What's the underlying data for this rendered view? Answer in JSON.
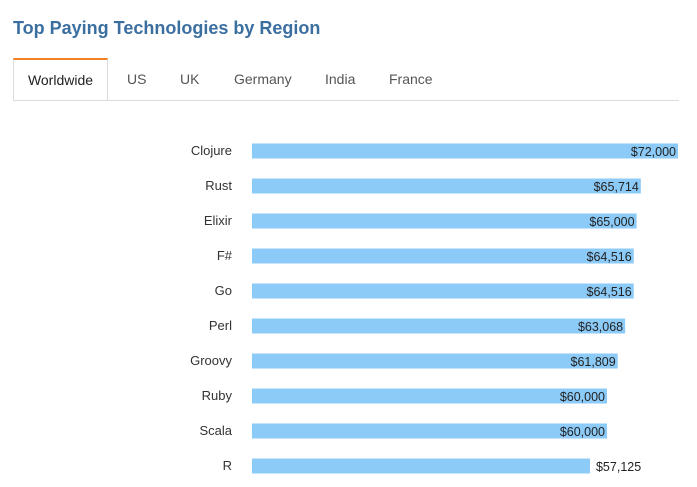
{
  "header": {
    "title": "Top Paying Technologies by Region"
  },
  "tabs": [
    {
      "label": "Worldwide",
      "active": true
    },
    {
      "label": "US",
      "active": false
    },
    {
      "label": "UK",
      "active": false
    },
    {
      "label": "Germany",
      "active": false
    },
    {
      "label": "India",
      "active": false
    },
    {
      "label": "France",
      "active": false
    }
  ],
  "colors": {
    "title": "#3b6fa0",
    "bar": "#8ccaf7",
    "active_tab_accent": "#f48024"
  },
  "chart_data": {
    "type": "bar",
    "orientation": "horizontal",
    "title": "",
    "region": "Worldwide",
    "categories": [
      "Clojure",
      "Rust",
      "Elixir",
      "F#",
      "Go",
      "Perl",
      "Groovy",
      "Ruby",
      "Scala",
      "R"
    ],
    "values": [
      72000,
      65714,
      65000,
      64516,
      64516,
      63068,
      61809,
      60000,
      60000,
      57125
    ],
    "value_labels": [
      "$72,000",
      "$65,714",
      "$65,000",
      "$64,516",
      "$64,516",
      "$63,068",
      "$61,809",
      "$60,000",
      "$60,000",
      "$57,125"
    ],
    "xlim": [
      0,
      72000
    ],
    "grid": false,
    "legend": "none"
  }
}
